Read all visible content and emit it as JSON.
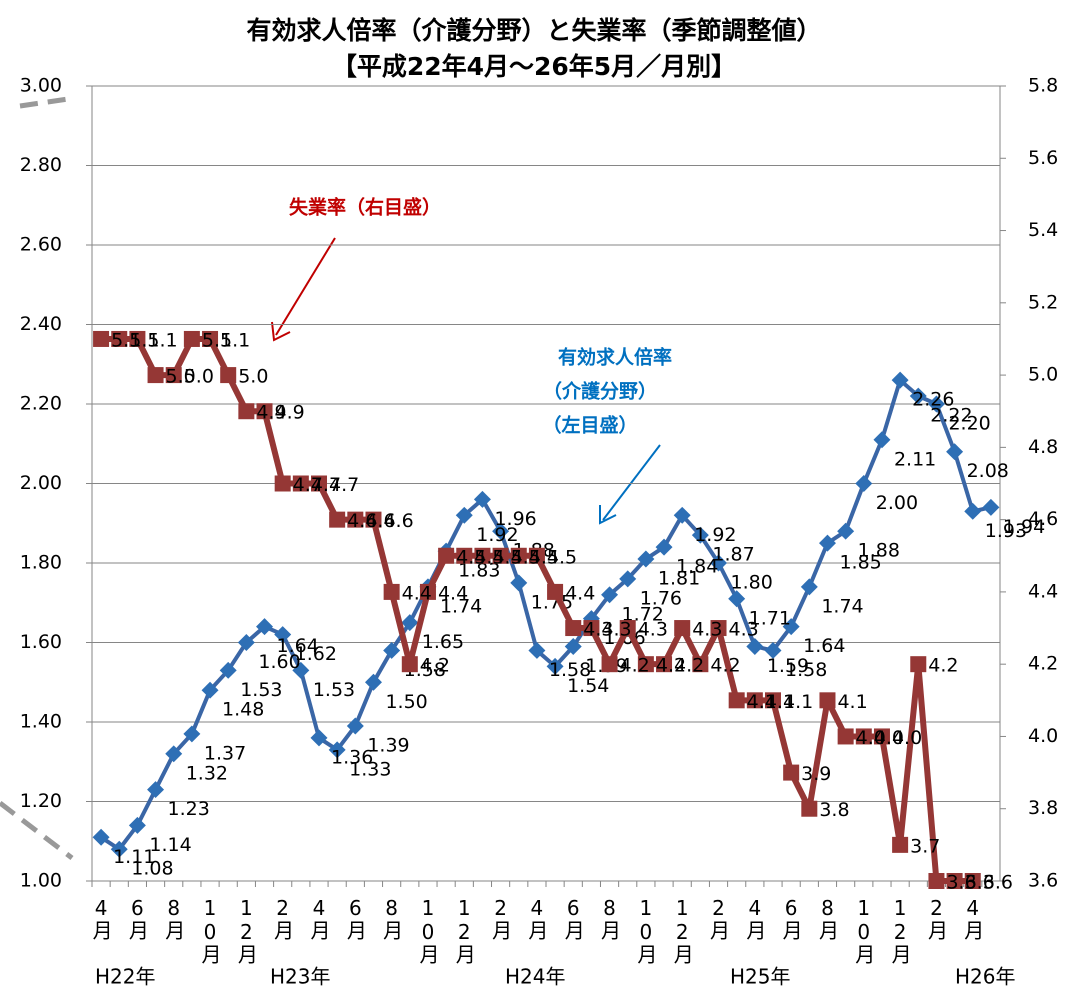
{
  "chart_data": {
    "type": "line",
    "title": "有効求人倍率（介護分野）と失業率（季節調整値）",
    "subtitle": "【平成22年4月～26年5月／月別】",
    "categories": [
      "4月",
      null,
      "6月",
      null,
      "8月",
      null,
      "10月",
      null,
      "12月",
      null,
      "2月",
      null,
      "4月",
      null,
      "6月",
      null,
      "8月",
      null,
      "10月",
      null,
      "12月",
      null,
      "2月",
      null,
      "4月",
      null,
      "6月",
      null,
      "8月",
      null,
      "10月",
      null,
      "12月",
      null,
      "2月",
      null,
      "4月",
      null,
      "6月",
      null,
      "8月",
      null,
      "10月",
      null,
      "12月",
      null,
      "2月",
      null,
      "4月",
      null
    ],
    "year_labels": [
      "H22年",
      "H23年",
      "H24年",
      "H25年",
      "H26年"
    ],
    "series": [
      {
        "name": "有効求人倍率（介護分野）",
        "color": "#3a66a6",
        "axis": "y",
        "values": [
          1.11,
          1.08,
          1.14,
          1.23,
          1.32,
          1.37,
          1.48,
          1.53,
          1.6,
          1.64,
          1.62,
          1.53,
          1.36,
          1.33,
          1.39,
          1.5,
          1.58,
          1.65,
          1.74,
          1.83,
          1.92,
          1.96,
          1.88,
          1.75,
          1.58,
          1.54,
          1.59,
          1.66,
          1.72,
          1.76,
          1.81,
          1.84,
          1.92,
          1.87,
          1.8,
          1.71,
          1.59,
          1.58,
          1.64,
          1.74,
          1.85,
          1.88,
          2.0,
          2.11,
          2.26,
          2.22,
          2.2,
          2.08,
          1.93,
          1.94
        ],
        "value_labels": [
          "1.11",
          "1.08",
          "1.14",
          "1.23",
          "1.32",
          "1.37",
          "1.48",
          "1.53",
          "1.60",
          "1.64",
          "1.62",
          "1.53",
          "1.36",
          "1.33",
          "1.39",
          "1.50",
          "1.58",
          "1.65",
          "1.74",
          "1.83",
          "1.92",
          "1.96",
          "1.88",
          "1.75",
          "1.58",
          "1.54",
          "1.59",
          "1.66",
          "1.72",
          "1.76",
          "1.81",
          "1.84",
          "1.92",
          "1.87",
          "1.80",
          "1.71",
          "1.59",
          "1.58",
          "1.64",
          "1.74",
          "1.85",
          "1.88",
          "2.00",
          "2.11",
          "2.26",
          "2.22",
          "2.20",
          "2.08",
          "1.93",
          "1.94"
        ]
      },
      {
        "name": "失業率",
        "color": "#953735",
        "axis": "y2",
        "values": [
          5.1,
          5.1,
          5.1,
          5.0,
          5.0,
          5.1,
          5.1,
          5.0,
          4.9,
          4.9,
          4.7,
          4.7,
          4.7,
          4.6,
          4.6,
          4.6,
          4.4,
          4.2,
          4.4,
          4.5,
          4.5,
          4.5,
          4.5,
          4.5,
          4.5,
          4.4,
          4.3,
          4.3,
          4.2,
          4.3,
          4.2,
          4.2,
          4.3,
          4.2,
          4.3,
          4.1,
          4.1,
          4.1,
          3.9,
          3.8,
          4.1,
          4.0,
          4.0,
          4.0,
          3.7,
          4.2,
          3.6,
          3.6,
          3.6,
          null
        ],
        "value_labels": [
          "5.1",
          "5.1",
          "5.1",
          "5.0",
          "5.0",
          "5.1",
          "5.1",
          "5.0",
          "4.9",
          "4.9",
          "4.7",
          "4.7",
          "4.7",
          "4.6",
          "4.6",
          "4.6",
          "4.4",
          "4.2",
          "4.4",
          "4.5",
          "4.5",
          "4.5",
          "4.5",
          "4.5",
          "4.5",
          "4.4",
          "4.3",
          "4.3",
          "4.2",
          "4.3",
          "4.2",
          "4.2",
          "4.3",
          "4.2",
          "4.3",
          "4.1",
          "4.1",
          "4.1",
          "3.9",
          "3.8",
          "4.1",
          "4.0",
          "4.0",
          "4.0",
          "3.7",
          "4.2",
          "3.6",
          "3.6",
          "3.6",
          null
        ]
      }
    ],
    "annotations": {
      "unemployment": "失業率（右目盛）",
      "ratio": [
        "有効求人倍率",
        "（介護分野）",
        "（左目盛）"
      ]
    },
    "ylim": [
      1.0,
      3.0
    ],
    "yticks": [
      {
        "value": 1.0,
        "label": "1.00"
      },
      {
        "value": 1.2,
        "label": "1.20"
      },
      {
        "value": 1.4,
        "label": "1.40"
      },
      {
        "value": 1.6,
        "label": "1.60"
      },
      {
        "value": 1.8,
        "label": "1.80"
      },
      {
        "value": 2.0,
        "label": "2.00"
      },
      {
        "value": 2.2,
        "label": "2.20"
      },
      {
        "value": 2.4,
        "label": "2.40"
      },
      {
        "value": 2.6,
        "label": "2.60"
      },
      {
        "value": 2.8,
        "label": "2.80"
      },
      {
        "value": 3.0,
        "label": "3.00"
      }
    ],
    "y2lim": [
      3.6,
      5.8
    ],
    "y2ticks": [
      3.6,
      3.8,
      {
        "value": 4.0,
        "label": "4.0"
      },
      4.2,
      4.4,
      4.6,
      4.8,
      {
        "value": 5.0,
        "label": "5.0"
      },
      5.2,
      5.4,
      5.6,
      5.8
    ],
    "grid": true
  }
}
